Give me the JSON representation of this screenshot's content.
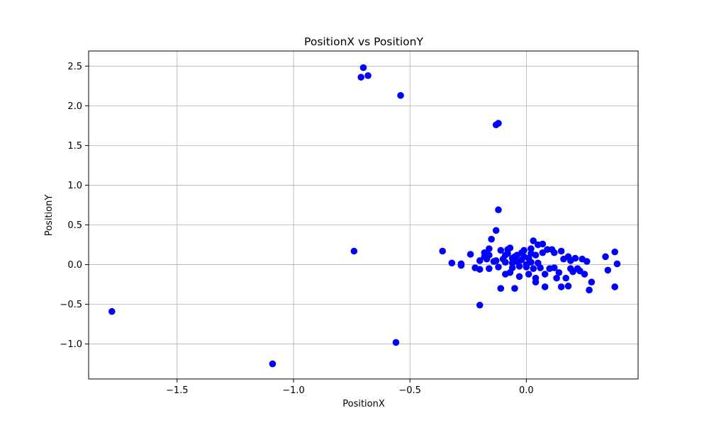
{
  "chart_data": {
    "type": "scatter",
    "title": "PositionX vs PositionY",
    "xlabel": "PositionX",
    "ylabel": "PositionY",
    "xlim": [
      -1.88,
      0.48
    ],
    "ylim": [
      -1.44,
      2.69
    ],
    "grid": true,
    "marker_color": "#0000ff",
    "x_ticks": [
      {
        "value": -1.5,
        "label": "−1.5"
      },
      {
        "value": -1.0,
        "label": "−1.0"
      },
      {
        "value": -0.5,
        "label": "−0.5"
      },
      {
        "value": 0.0,
        "label": "0.0"
      }
    ],
    "y_ticks": [
      {
        "value": -1.0,
        "label": "−1.0"
      },
      {
        "value": -0.5,
        "label": "−0.5"
      },
      {
        "value": 0.0,
        "label": "0.0"
      },
      {
        "value": 0.5,
        "label": "0.5"
      },
      {
        "value": 1.0,
        "label": "1.0"
      },
      {
        "value": 1.5,
        "label": "1.5"
      },
      {
        "value": 2.0,
        "label": "2.0"
      },
      {
        "value": 2.5,
        "label": "2.5"
      }
    ],
    "points": [
      {
        "x": -0.7,
        "y": 2.48
      },
      {
        "x": -0.71,
        "y": 2.36
      },
      {
        "x": -0.68,
        "y": 2.38
      },
      {
        "x": -0.54,
        "y": 2.13
      },
      {
        "x": -0.13,
        "y": 1.76
      },
      {
        "x": -0.12,
        "y": 1.78
      },
      {
        "x": -0.12,
        "y": 0.69
      },
      {
        "x": -0.13,
        "y": 0.43
      },
      {
        "x": -0.15,
        "y": 0.32
      },
      {
        "x": -0.74,
        "y": 0.17
      },
      {
        "x": -1.78,
        "y": -0.59
      },
      {
        "x": -1.09,
        "y": -1.25
      },
      {
        "x": -0.56,
        "y": -0.98
      },
      {
        "x": -0.2,
        "y": -0.51
      },
      {
        "x": -0.36,
        "y": 0.17
      },
      {
        "x": -0.32,
        "y": 0.02
      },
      {
        "x": -0.28,
        "y": -0.01
      },
      {
        "x": -0.28,
        "y": 0.01
      },
      {
        "x": -0.24,
        "y": 0.13
      },
      {
        "x": -0.22,
        "y": -0.04
      },
      {
        "x": -0.2,
        "y": -0.06
      },
      {
        "x": -0.2,
        "y": 0.05
      },
      {
        "x": -0.18,
        "y": 0.1
      },
      {
        "x": -0.18,
        "y": 0.15
      },
      {
        "x": -0.17,
        "y": 0.07
      },
      {
        "x": -0.16,
        "y": 0.2
      },
      {
        "x": -0.16,
        "y": 0.12
      },
      {
        "x": -0.16,
        "y": -0.05
      },
      {
        "x": -0.14,
        "y": 0.04
      },
      {
        "x": -0.13,
        "y": 0.05
      },
      {
        "x": -0.12,
        "y": -0.03
      },
      {
        "x": -0.11,
        "y": 0.18
      },
      {
        "x": -0.11,
        "y": -0.3
      },
      {
        "x": -0.1,
        "y": 0.07
      },
      {
        "x": -0.09,
        "y": 0.12
      },
      {
        "x": -0.09,
        "y": 0.03
      },
      {
        "x": -0.09,
        "y": -0.12
      },
      {
        "x": -0.08,
        "y": 0.19
      },
      {
        "x": -0.08,
        "y": 0.14
      },
      {
        "x": -0.07,
        "y": 0.21
      },
      {
        "x": -0.07,
        "y": -0.1
      },
      {
        "x": -0.06,
        "y": 0.08
      },
      {
        "x": -0.06,
        "y": 0.02
      },
      {
        "x": -0.06,
        "y": -0.04
      },
      {
        "x": -0.05,
        "y": -0.3
      },
      {
        "x": -0.05,
        "y": 0.1
      },
      {
        "x": -0.04,
        "y": 0.12
      },
      {
        "x": -0.04,
        "y": 0.04
      },
      {
        "x": -0.03,
        "y": -0.15
      },
      {
        "x": -0.03,
        "y": -0.02
      },
      {
        "x": -0.02,
        "y": 0.15
      },
      {
        "x": -0.02,
        "y": 0.06
      },
      {
        "x": -0.01,
        "y": 0.18
      },
      {
        "x": -0.01,
        "y": 0.1
      },
      {
        "x": 0.0,
        "y": 0.0
      },
      {
        "x": 0.0,
        "y": -0.03
      },
      {
        "x": 0.01,
        "y": 0.08
      },
      {
        "x": 0.01,
        "y": -0.12
      },
      {
        "x": 0.02,
        "y": 0.2
      },
      {
        "x": 0.02,
        "y": 0.14
      },
      {
        "x": 0.02,
        "y": 0.03
      },
      {
        "x": 0.03,
        "y": 0.3
      },
      {
        "x": 0.03,
        "y": -0.05
      },
      {
        "x": 0.04,
        "y": -0.17
      },
      {
        "x": 0.04,
        "y": -0.22
      },
      {
        "x": 0.04,
        "y": 0.12
      },
      {
        "x": 0.05,
        "y": 0.02
      },
      {
        "x": 0.05,
        "y": 0.25
      },
      {
        "x": 0.06,
        "y": -0.04
      },
      {
        "x": 0.07,
        "y": 0.26
      },
      {
        "x": 0.07,
        "y": 0.15
      },
      {
        "x": 0.08,
        "y": -0.12
      },
      {
        "x": 0.08,
        "y": -0.28
      },
      {
        "x": 0.09,
        "y": 0.19
      },
      {
        "x": 0.1,
        "y": -0.05
      },
      {
        "x": 0.11,
        "y": 0.19
      },
      {
        "x": 0.12,
        "y": 0.15
      },
      {
        "x": 0.12,
        "y": -0.04
      },
      {
        "x": 0.13,
        "y": -0.17
      },
      {
        "x": 0.14,
        "y": -0.1
      },
      {
        "x": 0.15,
        "y": 0.17
      },
      {
        "x": 0.15,
        "y": -0.28
      },
      {
        "x": 0.16,
        "y": 0.07
      },
      {
        "x": 0.17,
        "y": -0.17
      },
      {
        "x": 0.18,
        "y": -0.27
      },
      {
        "x": 0.18,
        "y": 0.1
      },
      {
        "x": 0.19,
        "y": 0.05
      },
      {
        "x": 0.19,
        "y": -0.05
      },
      {
        "x": 0.2,
        "y": -0.09
      },
      {
        "x": 0.21,
        "y": 0.08
      },
      {
        "x": 0.22,
        "y": -0.05
      },
      {
        "x": 0.23,
        "y": -0.08
      },
      {
        "x": 0.24,
        "y": 0.07
      },
      {
        "x": 0.25,
        "y": -0.12
      },
      {
        "x": 0.26,
        "y": 0.04
      },
      {
        "x": 0.27,
        "y": -0.32
      },
      {
        "x": 0.28,
        "y": -0.22
      },
      {
        "x": 0.34,
        "y": 0.1
      },
      {
        "x": 0.35,
        "y": -0.07
      },
      {
        "x": 0.38,
        "y": 0.16
      },
      {
        "x": 0.38,
        "y": -0.28
      },
      {
        "x": 0.39,
        "y": 0.01
      }
    ]
  }
}
